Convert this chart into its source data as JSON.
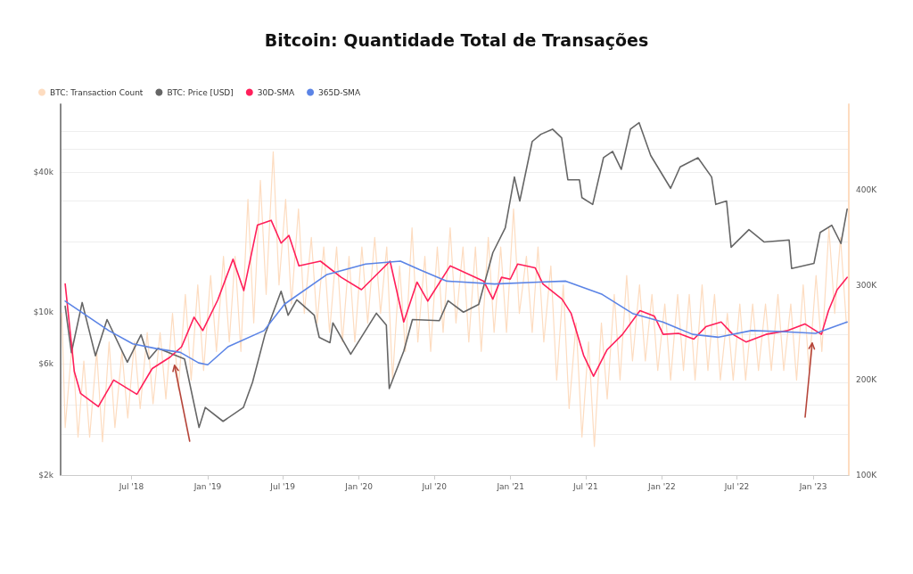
{
  "chart_data": {
    "type": "line",
    "title": "Bitcoin: Quantidade Total de Transações",
    "legend": "top left",
    "grid": "y",
    "marker": "none",
    "line_style": "solid",
    "log": "y",
    "xlim": [
      "2018-01-11",
      "2023-03-28"
    ],
    "xticks": [
      {
        "value": "2018-07-01",
        "label": "Jul '18"
      },
      {
        "value": "2019-01-01",
        "label": "Jan '19"
      },
      {
        "value": "2019-07-01",
        "label": "Jul '19"
      },
      {
        "value": "2020-01-01",
        "label": "Jan '20"
      },
      {
        "value": "2020-07-01",
        "label": "Jul '20"
      },
      {
        "value": "2021-01-01",
        "label": "Jan '21"
      },
      {
        "value": "2021-07-01",
        "label": "Jul '21"
      },
      {
        "value": "2022-01-01",
        "label": "Jan '22"
      },
      {
        "value": "2022-07-01",
        "label": "Jul '22"
      },
      {
        "value": "2023-01-01",
        "label": "Jan '23"
      }
    ],
    "ylim": [
      2000,
      78000
    ],
    "yticks": [
      {
        "value": 2000,
        "label": "$2k"
      },
      {
        "value": 3000,
        "label": null
      },
      {
        "value": 4000,
        "label": null
      },
      {
        "value": 5000,
        "label": null
      },
      {
        "value": 6000,
        "label": "$6k"
      },
      {
        "value": 8000,
        "label": null
      },
      {
        "value": 10000,
        "label": "$10k"
      },
      {
        "value": 20000,
        "label": null
      },
      {
        "value": 30000,
        "label": null
      },
      {
        "value": 40000,
        "label": "$40k"
      },
      {
        "value": 50000,
        "label": null
      },
      {
        "value": 60000,
        "label": null
      }
    ],
    "y2lim": [
      100000,
      490000
    ],
    "y2ticks": [
      {
        "value": 100000,
        "label": "100K"
      },
      {
        "value": 200000,
        "label": "200K"
      },
      {
        "value": 300000,
        "label": "300K"
      },
      {
        "value": 400000,
        "label": "400K"
      }
    ],
    "series": [
      {
        "name": "BTC: Transaction Count",
        "color": "#fddcc0",
        "axis": "y2",
        "x": [
          "2018-01-14",
          "2018-01-22",
          "2018-02-08",
          "2018-02-22",
          "2018-03-08",
          "2018-03-22",
          "2018-04-08",
          "2018-04-22",
          "2018-05-08",
          "2018-05-22",
          "2018-06-08",
          "2018-06-22",
          "2018-07-08",
          "2018-07-22",
          "2018-08-08",
          "2018-08-22",
          "2018-09-08",
          "2018-09-22",
          "2018-10-08",
          "2018-10-22",
          "2018-11-08",
          "2018-11-22",
          "2018-12-08",
          "2018-12-22",
          "2019-01-08",
          "2019-01-22",
          "2019-02-08",
          "2019-02-22",
          "2019-03-08",
          "2019-03-22",
          "2019-04-08",
          "2019-04-22",
          "2019-05-08",
          "2019-05-22",
          "2019-06-08",
          "2019-06-22",
          "2019-07-08",
          "2019-07-22",
          "2019-08-08",
          "2019-08-22",
          "2019-09-08",
          "2019-09-22",
          "2019-10-08",
          "2019-10-22",
          "2019-11-08",
          "2019-11-22",
          "2019-12-08",
          "2019-12-22",
          "2020-01-08",
          "2020-01-22",
          "2020-02-08",
          "2020-02-22",
          "2020-03-08",
          "2020-03-22",
          "2020-04-08",
          "2020-04-22",
          "2020-05-08",
          "2020-05-22",
          "2020-06-08",
          "2020-06-22",
          "2020-07-08",
          "2020-07-22",
          "2020-08-08",
          "2020-08-22",
          "2020-09-08",
          "2020-09-22",
          "2020-10-08",
          "2020-10-22",
          "2020-11-08",
          "2020-11-22",
          "2020-12-08",
          "2020-12-22",
          "2021-01-08",
          "2021-01-22",
          "2021-02-08",
          "2021-02-22",
          "2021-03-08",
          "2021-03-22",
          "2021-04-08",
          "2021-04-22",
          "2021-05-08",
          "2021-05-22",
          "2021-06-08",
          "2021-06-22",
          "2021-07-08",
          "2021-07-22",
          "2021-08-08",
          "2021-08-22",
          "2021-09-08",
          "2021-09-22",
          "2021-10-08",
          "2021-10-22",
          "2021-11-08",
          "2021-11-22",
          "2021-12-08",
          "2021-12-22",
          "2022-01-08",
          "2022-01-22",
          "2022-02-08",
          "2022-02-22",
          "2022-03-08",
          "2022-03-22",
          "2022-04-08",
          "2022-04-22",
          "2022-05-08",
          "2022-05-22",
          "2022-06-08",
          "2022-06-22",
          "2022-07-08",
          "2022-07-22",
          "2022-08-08",
          "2022-08-22",
          "2022-09-08",
          "2022-09-22",
          "2022-10-08",
          "2022-10-22",
          "2022-11-08",
          "2022-11-22",
          "2022-12-08",
          "2022-12-22",
          "2023-01-08",
          "2023-01-22",
          "2023-02-08",
          "2023-02-22",
          "2023-03-08",
          "2023-03-22"
        ],
        "values": [
          270000,
          150000,
          240000,
          140000,
          220000,
          140000,
          230000,
          135000,
          240000,
          150000,
          230000,
          160000,
          240000,
          170000,
          250000,
          175000,
          250000,
          180000,
          270000,
          190000,
          290000,
          200000,
          300000,
          210000,
          310000,
          230000,
          330000,
          240000,
          330000,
          230000,
          390000,
          260000,
          410000,
          290000,
          440000,
          300000,
          390000,
          280000,
          380000,
          270000,
          350000,
          260000,
          340000,
          250000,
          340000,
          240000,
          330000,
          240000,
          340000,
          260000,
          350000,
          270000,
          340000,
          200000,
          320000,
          230000,
          360000,
          240000,
          330000,
          230000,
          340000,
          250000,
          360000,
          260000,
          340000,
          240000,
          340000,
          230000,
          350000,
          250000,
          340000,
          250000,
          380000,
          270000,
          330000,
          250000,
          340000,
          240000,
          320000,
          200000,
          300000,
          170000,
          260000,
          140000,
          240000,
          130000,
          260000,
          180000,
          290000,
          200000,
          310000,
          220000,
          300000,
          220000,
          290000,
          210000,
          280000,
          200000,
          290000,
          210000,
          290000,
          200000,
          300000,
          210000,
          290000,
          200000,
          270000,
          200000,
          280000,
          200000,
          280000,
          210000,
          280000,
          210000,
          290000,
          210000,
          280000,
          200000,
          300000,
          210000,
          310000,
          230000,
          360000,
          270000,
          350000,
          260000
        ]
      },
      {
        "name": "BTC: Price [USD]",
        "color": "#666666",
        "x": [
          "2018-01-22",
          "2018-02-06",
          "2018-03-04",
          "2018-04-05",
          "2018-05-03",
          "2018-06-21",
          "2018-07-24",
          "2018-08-12",
          "2018-09-03",
          "2018-11-06",
          "2018-12-11",
          "2018-12-26",
          "2019-02-07",
          "2019-03-28",
          "2019-04-19",
          "2019-05-19",
          "2019-06-27",
          "2019-07-14",
          "2019-08-04",
          "2019-09-15",
          "2019-09-27",
          "2019-10-23",
          "2019-10-30",
          "2019-12-12",
          "2020-02-12",
          "2020-03-07",
          "2020-03-14",
          "2020-04-18",
          "2020-05-09",
          "2020-07-13",
          "2020-08-03",
          "2020-09-09",
          "2020-10-16",
          "2020-11-19",
          "2020-12-19",
          "2021-01-10",
          "2021-01-23",
          "2021-02-22",
          "2021-03-15",
          "2021-04-12",
          "2021-05-04",
          "2021-05-19",
          "2021-06-16",
          "2021-06-22",
          "2021-07-18",
          "2021-08-13",
          "2021-09-04",
          "2021-09-25",
          "2021-10-17",
          "2021-11-07",
          "2021-12-05",
          "2022-01-22",
          "2022-02-14",
          "2022-03-29",
          "2022-05-01",
          "2022-05-11",
          "2022-06-06",
          "2022-06-17",
          "2022-07-30",
          "2022-09-05",
          "2022-11-04",
          "2022-11-10",
          "2023-01-03",
          "2023-01-18",
          "2023-02-15",
          "2023-03-09",
          "2023-03-24"
        ],
        "values": [
          10600,
          6700,
          11000,
          6500,
          9300,
          6100,
          8000,
          6300,
          7000,
          6300,
          3200,
          3900,
          3400,
          3900,
          5000,
          8000,
          12300,
          9700,
          11300,
          9700,
          7800,
          7400,
          9000,
          6600,
          9900,
          8800,
          4700,
          6800,
          9300,
          9200,
          11200,
          10000,
          10800,
          18000,
          23000,
          38000,
          30000,
          54000,
          58000,
          61000,
          56000,
          37000,
          37000,
          31000,
          29000,
          46000,
          49000,
          41000,
          61000,
          65000,
          47000,
          34000,
          42000,
          46000,
          38000,
          29000,
          30000,
          19000,
          22600,
          20000,
          20400,
          15400,
          16200,
          22000,
          23600,
          19700,
          27700
        ]
      },
      {
        "name": "30D-SMA",
        "color": "#ff1f5a",
        "axis": "y2",
        "x": [
          "2018-01-22",
          "2018-02-13",
          "2018-02-28",
          "2018-04-12",
          "2018-05-19",
          "2018-07-14",
          "2018-08-20",
          "2018-10-02",
          "2018-10-30",
          "2018-11-29",
          "2018-12-20",
          "2019-01-25",
          "2019-03-03",
          "2019-03-29",
          "2019-05-01",
          "2019-06-03",
          "2019-06-27",
          "2019-07-16",
          "2019-08-09",
          "2019-09-30",
          "2019-11-19",
          "2020-01-07",
          "2020-03-16",
          "2020-04-18",
          "2020-05-20",
          "2020-06-15",
          "2020-08-08",
          "2020-10-28",
          "2020-11-19",
          "2020-12-10",
          "2020-12-31",
          "2021-01-18",
          "2021-03-01",
          "2021-03-20",
          "2021-05-05",
          "2021-05-27",
          "2021-06-26",
          "2021-07-20",
          "2021-08-22",
          "2021-09-28",
          "2021-11-09",
          "2021-12-14",
          "2022-01-04",
          "2022-02-10",
          "2022-03-19",
          "2022-04-17",
          "2022-05-24",
          "2022-06-21",
          "2022-07-23",
          "2022-09-09",
          "2022-11-01",
          "2022-12-12",
          "2023-01-21",
          "2023-02-07",
          "2023-02-28",
          "2023-03-24"
        ],
        "values": [
          301000,
          209000,
          186000,
          172000,
          200000,
          185000,
          212000,
          224000,
          235000,
          266000,
          252000,
          284000,
          327000,
          294000,
          363000,
          368000,
          344000,
          352000,
          320000,
          325000,
          308000,
          295000,
          325000,
          261000,
          303000,
          283000,
          320000,
          304000,
          285000,
          308000,
          306000,
          322000,
          318000,
          301000,
          285000,
          270000,
          226000,
          204000,
          232000,
          248000,
          273000,
          267000,
          248000,
          249000,
          243000,
          256000,
          261000,
          248000,
          240000,
          248000,
          252000,
          259000,
          248000,
          273000,
          295000,
          308000
        ]
      },
      {
        "name": "365D-SMA",
        "color": "#5b84e6",
        "axis": "y2",
        "x": [
          "2018-01-22",
          "2018-05-07",
          "2018-07-04",
          "2018-08-30",
          "2018-10-27",
          "2018-12-10",
          "2019-01-01",
          "2019-02-19",
          "2019-05-17",
          "2019-07-06",
          "2019-10-16",
          "2020-01-17",
          "2020-04-10",
          "2020-05-26",
          "2020-07-31",
          "2020-11-23",
          "2021-03-10",
          "2021-05-14",
          "2021-08-10",
          "2021-10-22",
          "2022-01-03",
          "2022-03-16",
          "2022-05-18",
          "2022-08-05",
          "2022-10-16",
          "2023-01-07",
          "2023-03-24"
        ],
        "values": [
          283000,
          252000,
          238000,
          233000,
          229000,
          218000,
          216000,
          235000,
          252000,
          280000,
          311000,
          322000,
          325000,
          316000,
          304000,
          301000,
          303000,
          304000,
          290000,
          270000,
          261000,
          248000,
          245000,
          252000,
          251000,
          249000,
          261000
        ]
      }
    ]
  }
}
